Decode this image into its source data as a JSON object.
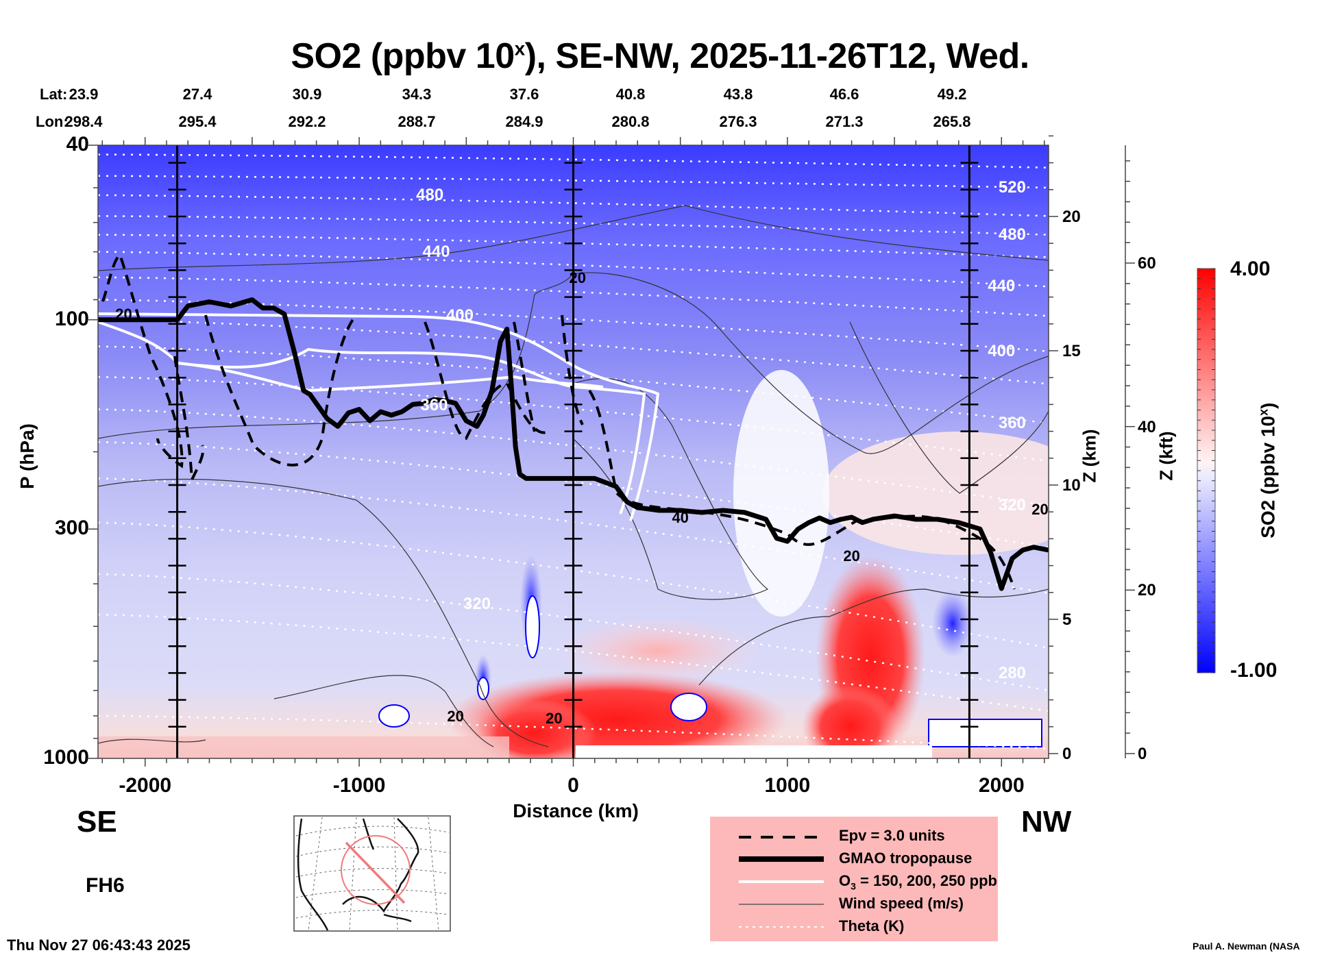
{
  "chart_data": {
    "type": "heatmap",
    "title": "SO2 (ppbv 10^x), SE-NW, 2025-11-26T12, Wed.",
    "title_parts": {
      "main": "SO2 (ppbv 10",
      "sup": "x",
      "rest": "), SE-NW, 2025-11-26T12, Wed."
    },
    "xlabel": "Distance (km)",
    "ylabel": "P (hPa)",
    "ylabel_right": "Z (km)",
    "ylabel_right2": "Z (kft)",
    "xlim": [
      -2220,
      2220
    ],
    "ylim": [
      1000,
      40
    ],
    "yscale": "log",
    "x_ticks": [
      -2000,
      -1000,
      0,
      1000,
      2000
    ],
    "x_tick_labels": [
      "-2000",
      "-1000",
      "0",
      "1000",
      "2000"
    ],
    "y_ticks": [
      40,
      100,
      300,
      1000
    ],
    "y_tick_labels": [
      "40",
      "100",
      "300",
      "1000"
    ],
    "z_km_ticks": [
      0,
      5,
      10,
      15,
      20
    ],
    "z_km_tick_labels": [
      "0",
      "5",
      "10",
      "15",
      "20"
    ],
    "z_kft_ticks": [
      0,
      20,
      40,
      60
    ],
    "z_kft_tick_labels": [
      "0",
      "20",
      "40",
      "60"
    ],
    "vertical_markers_km": [
      -1850,
      0,
      1850
    ],
    "lat_lon_header": {
      "lat_label": "Lat:",
      "lon_label": "Lon:",
      "lat": [
        "23.9",
        "27.4",
        "30.9",
        "34.3",
        "37.6",
        "40.8",
        "43.8",
        "46.6",
        "49.2"
      ],
      "lon": [
        "298.4",
        "295.4",
        "292.2",
        "288.7",
        "284.9",
        "280.8",
        "276.3",
        "271.3",
        "265.8"
      ]
    },
    "colorbar": {
      "label": "SO2 (ppbv 10^x)",
      "label_main": "SO2 (ppbv 10",
      "label_sup": "x",
      "label_rest": ")",
      "min": -1.0,
      "max": 4.0,
      "min_label": "-1.00",
      "max_label": "4.00",
      "colors": [
        "#0000ff",
        "#ffffff",
        "#ff0000"
      ],
      "levels": 40
    },
    "theta_contours_K": [
      280,
      320,
      360,
      400,
      440,
      480,
      520
    ],
    "theta_labels": [
      {
        "value": "480",
        "x_km": -670,
        "p": 52
      },
      {
        "value": "440",
        "x_km": -640,
        "p": 70
      },
      {
        "value": "400",
        "x_km": -530,
        "p": 98
      },
      {
        "value": "360",
        "x_km": -650,
        "p": 157
      },
      {
        "value": "320",
        "x_km": -450,
        "p": 445
      },
      {
        "value": "520",
        "x_km": 2050,
        "p": 50
      },
      {
        "value": "480",
        "x_km": 2050,
        "p": 64
      },
      {
        "value": "440",
        "x_km": 2000,
        "p": 84
      },
      {
        "value": "400",
        "x_km": 2000,
        "p": 118
      },
      {
        "value": "360",
        "x_km": 2050,
        "p": 172
      },
      {
        "value": "320",
        "x_km": 2050,
        "p": 265
      },
      {
        "value": "280",
        "x_km": 2050,
        "p": 640
      }
    ],
    "wind_speed_labels": [
      {
        "value": "20",
        "x_km": -2100,
        "p": 97
      },
      {
        "value": "20",
        "x_km": 20,
        "p": 80
      },
      {
        "value": "40",
        "x_km": 500,
        "p": 282
      },
      {
        "value": "20",
        "x_km": 1300,
        "p": 345
      },
      {
        "value": "20",
        "x_km": 2180,
        "p": 270
      },
      {
        "value": "20",
        "x_km": -550,
        "p": 800
      },
      {
        "value": "20",
        "x_km": -90,
        "p": 810
      }
    ],
    "gmao_tropopause": {
      "x_km": [
        -2220,
        -1850,
        -1800,
        -1700,
        -1600,
        -1500,
        -1450,
        -1400,
        -1350,
        -1300,
        -1260,
        -1230,
        -1150,
        -1100,
        -1050,
        -1000,
        -950,
        -900,
        -850,
        -800,
        -750,
        -700,
        -650,
        -600,
        -550,
        -500,
        -450,
        -420,
        -380,
        -340,
        -310,
        -290,
        -270,
        -250,
        -220,
        -200,
        -180,
        -100,
        0,
        100,
        200,
        250,
        300,
        350,
        400,
        500,
        600,
        700,
        800,
        900,
        950,
        1000,
        1050,
        1100,
        1150,
        1200,
        1250,
        1300,
        1350,
        1400,
        1500,
        1600,
        1700,
        1800,
        1900,
        1950,
        2000,
        2050,
        2100,
        2150,
        2220
      ],
      "p_hPa": [
        100,
        100,
        93,
        91,
        93,
        90,
        94,
        94,
        97,
        120,
        145,
        148,
        168,
        175,
        163,
        160,
        170,
        162,
        165,
        162,
        156,
        155,
        152,
        153,
        155,
        170,
        175,
        165,
        145,
        112,
        105,
        140,
        195,
        225,
        230,
        230,
        230,
        230,
        230,
        230,
        240,
        260,
        268,
        270,
        272,
        272,
        275,
        272,
        275,
        285,
        315,
        320,
        300,
        290,
        283,
        290,
        285,
        282,
        290,
        285,
        280,
        285,
        285,
        290,
        300,
        340,
        410,
        350,
        335,
        330,
        335
      ]
    },
    "o3_contours_ppb": [
      150,
      200,
      250
    ],
    "epv_contour_units": 3.0,
    "notes": "Filled SO2 field: mostly blue (low) aloft, red (high) near surface between -200 and 700 km and a plume near 1100-1400 km rising to ~350 hPa."
  },
  "labels": {
    "se": "SE",
    "nw": "NW",
    "forecast_hour": "FH6",
    "timestamp": "Thu Nov 27 06:43:43 2025",
    "credit": "Paul A. Newman (NASA"
  },
  "legend": {
    "items": [
      {
        "label": "Epv = 3.0 units",
        "style": "dashed-thick-black"
      },
      {
        "label": "GMAO tropopause",
        "style": "thick-black"
      },
      {
        "label_main": "O",
        "label_sub": "3",
        "label_rest": " = 150, 200, 250 ppb",
        "style": "white"
      },
      {
        "label": "Wind speed (m/s)",
        "style": "thin-gray"
      },
      {
        "label": "Theta (K)",
        "style": "dotted-white"
      }
    ],
    "background": "#fdb9b9"
  },
  "colors": {
    "blue": "#0000ff",
    "red": "#ff0000",
    "legend_bg": "#fdb9b9",
    "map_track": "#f07a7a"
  }
}
